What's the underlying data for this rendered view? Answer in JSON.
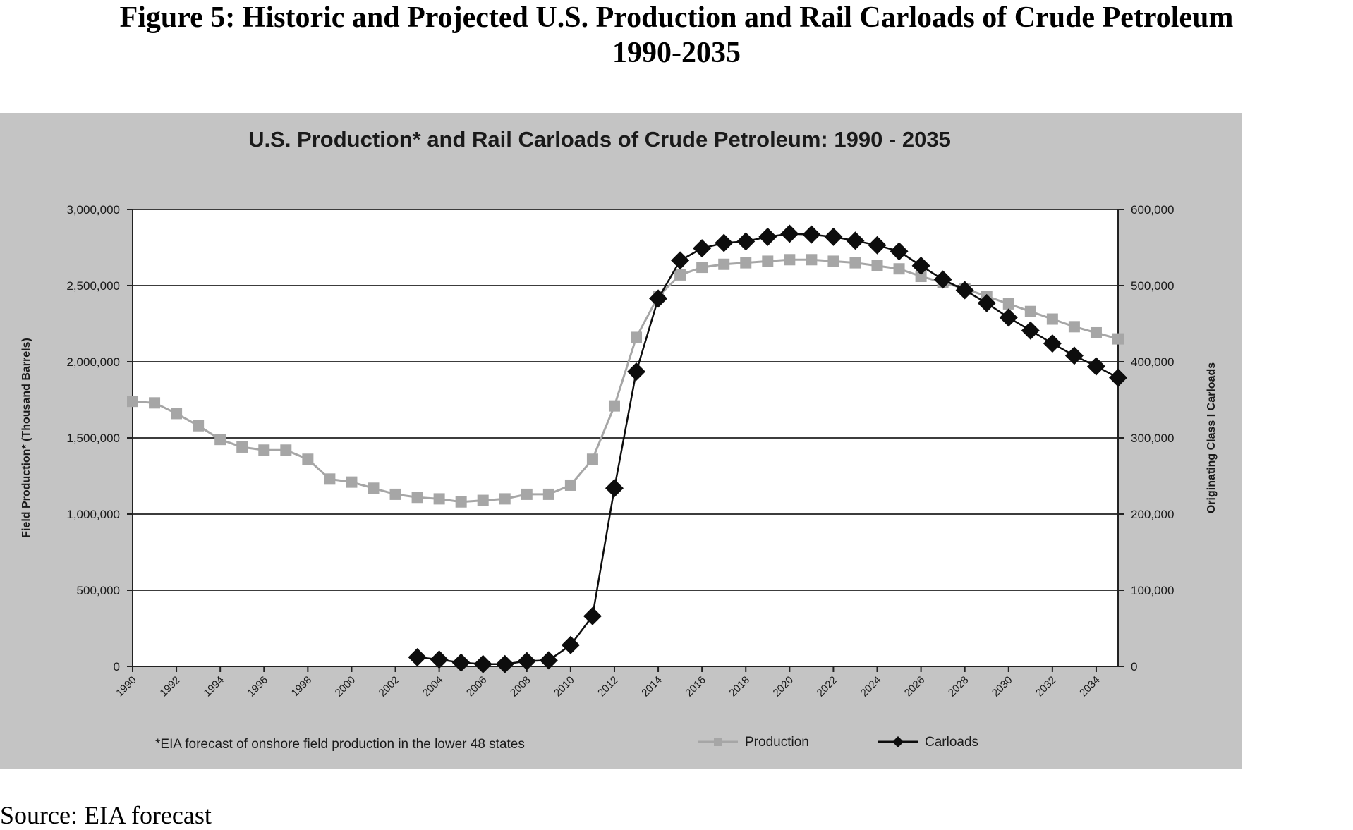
{
  "figure": {
    "title_line1": "Figure 5: Historic and Projected U.S. Production and Rail Carloads of Crude Petroleum",
    "title_line2": "1990-2035",
    "source": "Source: EIA forecast"
  },
  "colors": {
    "panel_background": "#c4c4c4",
    "plot_background": "#ffffff",
    "production": "#a6a6a6",
    "carloads": "#0d0d0d",
    "gridline": "#3c3c3c"
  },
  "chart_data": {
    "type": "line",
    "title": "U.S. Production* and Rail Carloads of Crude Petroleum: 1990 - 2035",
    "ylabel_left": "Field Production* (Thousand Barrels)",
    "ylabel_right": "Originating Class I Carloads",
    "ylim_left": [
      0,
      3000000
    ],
    "ylim_right": [
      0,
      600000
    ],
    "yticks_left": [
      "0",
      "500,000",
      "1,000,000",
      "1,500,000",
      "2,000,000",
      "2,500,000",
      "3,000,000"
    ],
    "yticks_right": [
      "0",
      "100,000",
      "200,000",
      "300,000",
      "400,000",
      "500,000",
      "600,000"
    ],
    "xticks": [
      "1990",
      "1992",
      "1994",
      "1996",
      "1998",
      "2000",
      "2002",
      "2004",
      "2006",
      "2008",
      "2010",
      "2012",
      "2014",
      "2016",
      "2018",
      "2020",
      "2022",
      "2024",
      "2026",
      "2028",
      "2030",
      "2032",
      "2034"
    ],
    "grid": true,
    "legend_position": "bottom",
    "footnote": "*EIA forecast of onshore field production in the lower 48 states",
    "series": [
      {
        "name": "Production",
        "axis": "left",
        "marker": "square",
        "x": [
          1990,
          1991,
          1992,
          1993,
          1994,
          1995,
          1996,
          1997,
          1998,
          1999,
          2000,
          2001,
          2002,
          2003,
          2004,
          2005,
          2006,
          2007,
          2008,
          2009,
          2010,
          2011,
          2012,
          2013,
          2014,
          2015,
          2016,
          2017,
          2018,
          2019,
          2020,
          2021,
          2022,
          2023,
          2024,
          2025,
          2026,
          2027,
          2028,
          2029,
          2030,
          2031,
          2032,
          2033,
          2034,
          2035
        ],
        "values": [
          1740000,
          1730000,
          1660000,
          1580000,
          1490000,
          1440000,
          1420000,
          1420000,
          1360000,
          1230000,
          1210000,
          1170000,
          1130000,
          1110000,
          1100000,
          1080000,
          1090000,
          1100000,
          1130000,
          1130000,
          1190000,
          1360000,
          1710000,
          2160000,
          2430000,
          2570000,
          2620000,
          2640000,
          2650000,
          2660000,
          2670000,
          2670000,
          2660000,
          2650000,
          2630000,
          2610000,
          2560000,
          2520000,
          2480000,
          2430000,
          2380000,
          2330000,
          2280000,
          2230000,
          2190000,
          2150000
        ]
      },
      {
        "name": "Carloads",
        "axis": "right",
        "marker": "diamond",
        "x": [
          2003,
          2004,
          2005,
          2006,
          2007,
          2008,
          2009,
          2010,
          2011,
          2012,
          2013,
          2014,
          2015,
          2016,
          2017,
          2018,
          2019,
          2020,
          2021,
          2022,
          2023,
          2024,
          2025,
          2026,
          2027,
          2028,
          2029,
          2030,
          2031,
          2032,
          2033,
          2034,
          2035
        ],
        "values": [
          12000,
          9000,
          5000,
          3000,
          3000,
          7000,
          8000,
          28000,
          66000,
          234000,
          387000,
          483000,
          533000,
          549000,
          556000,
          558000,
          564000,
          568000,
          567000,
          564000,
          559000,
          553000,
          545000,
          526000,
          508000,
          494000,
          477000,
          458000,
          441000,
          424000,
          408000,
          394000,
          379000
        ]
      }
    ]
  }
}
